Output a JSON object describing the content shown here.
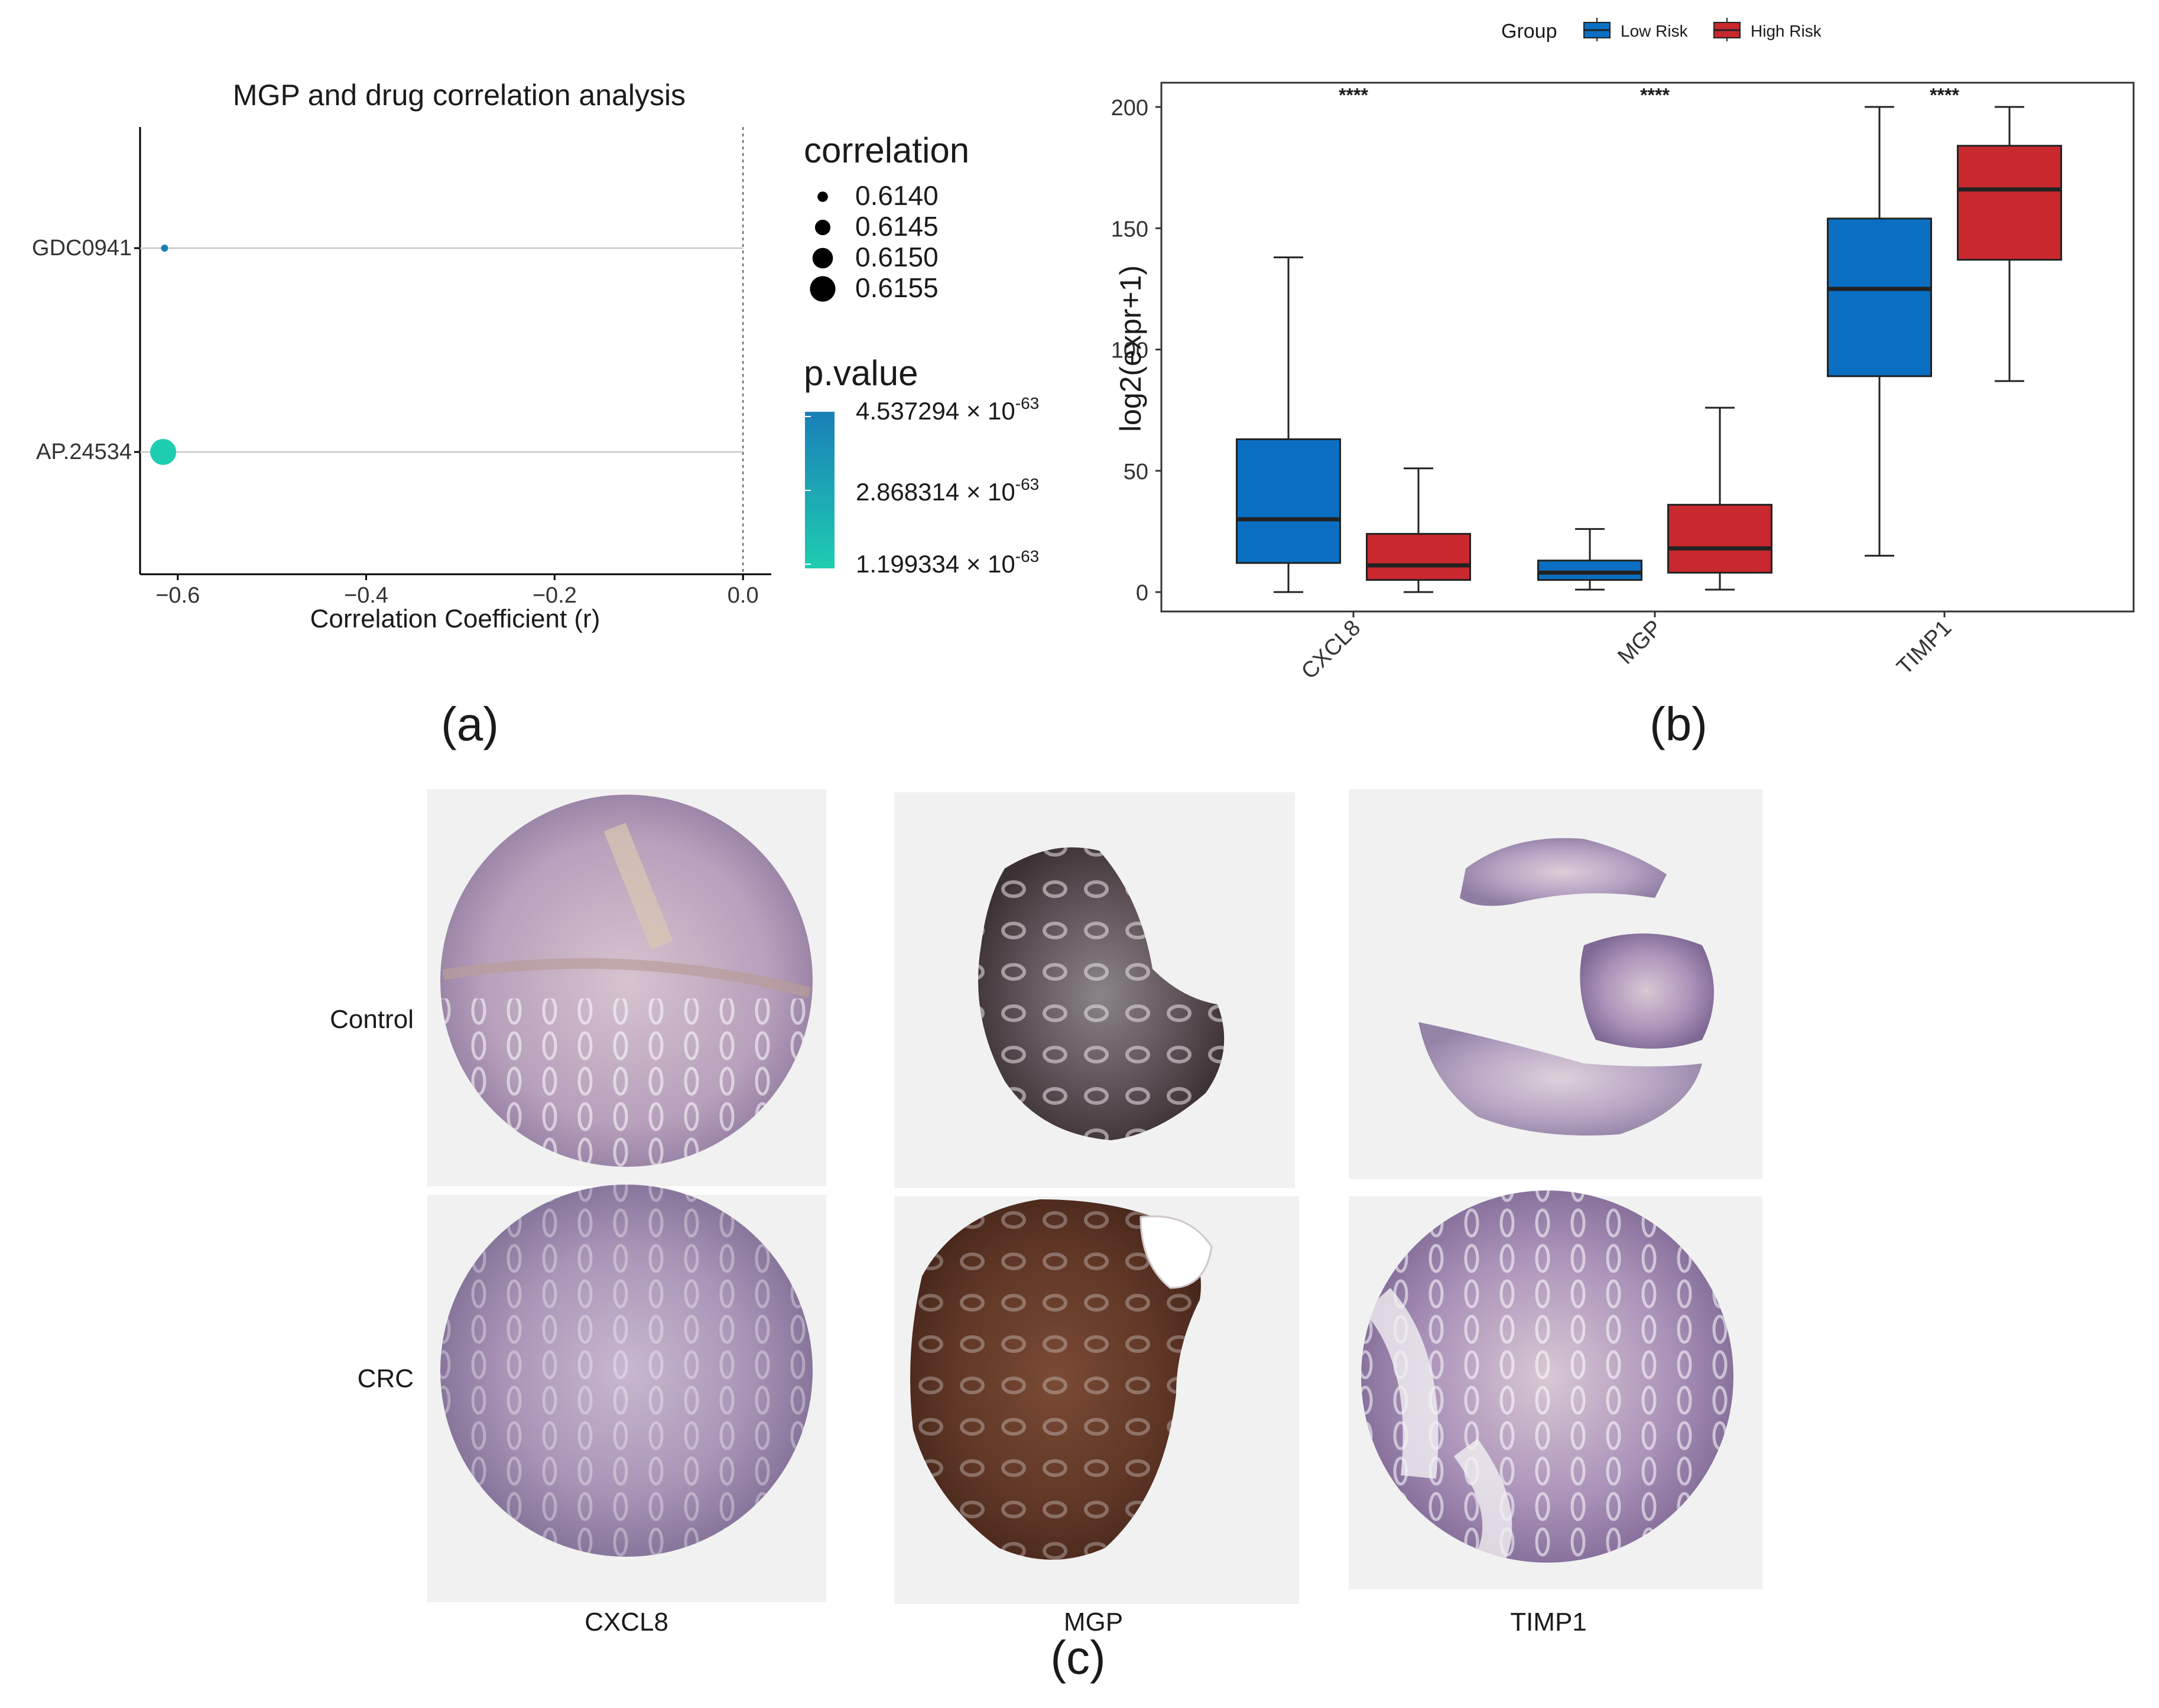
{
  "panels": {
    "a": {
      "label": "(a)"
    },
    "b": {
      "label": "(b)"
    },
    "c": {
      "label": "(c)"
    }
  },
  "chart_data": [
    {
      "id": "a",
      "type": "scatter",
      "title": "MGP and drug correlation analysis",
      "xlabel": "Correlation Coefficient (r)",
      "ylabel": "",
      "xlim": [
        -0.64,
        0.03
      ],
      "x_ticks": [
        -0.6,
        -0.4,
        -0.2,
        0.0
      ],
      "x_tick_labels": [
        "−0.6",
        "−0.4",
        "−0.2",
        "0.0"
      ],
      "reference_line_x": 0.0,
      "categories": [
        "GDC0941",
        "AP.24534"
      ],
      "points": [
        {
          "drug": "GDC0941",
          "r": -0.614,
          "correlation": 0.614,
          "p_value": 4.537294e-63,
          "color": "#1a7fb8"
        },
        {
          "drug": "AP.24534",
          "r": -0.6155,
          "correlation": 0.6155,
          "p_value": 1.199334e-63,
          "color": "#1ecdb0"
        }
      ],
      "size_legend": {
        "title": "correlation",
        "entries": [
          "0.6140",
          "0.6145",
          "0.6150",
          "0.6155"
        ]
      },
      "color_legend": {
        "title": "p.value",
        "entries": [
          {
            "mantissa": "4.537294",
            "base": "× 10",
            "exp": "-63"
          },
          {
            "mantissa": "2.868314",
            "base": "× 10",
            "exp": "-63"
          },
          {
            "mantissa": "1.199334",
            "base": "× 10",
            "exp": "-63"
          }
        ],
        "color_high": "#1a7fb8",
        "color_low": "#1ecdb0"
      }
    },
    {
      "id": "b",
      "type": "box",
      "title": "",
      "xlabel": "",
      "ylabel": "log2(expr+1)",
      "ylim": [
        -8,
        210
      ],
      "y_ticks": [
        0,
        50,
        100,
        150,
        200
      ],
      "categories": [
        "CXCL8",
        "MGP",
        "TIMP1"
      ],
      "significance": [
        "****",
        "****",
        "****"
      ],
      "legend": {
        "title": "Group",
        "entries": [
          {
            "name": "Low Risk",
            "color": "#0a6fc2"
          },
          {
            "name": "High Risk",
            "color": "#c8282e"
          }
        ]
      },
      "series": [
        {
          "name": "Low Risk",
          "color": "#0a6fc2",
          "boxes": [
            {
              "min": 0,
              "q1": 12,
              "median": 30,
              "q3": 63,
              "max": 138
            },
            {
              "min": 1,
              "q1": 5,
              "median": 8,
              "q3": 13,
              "max": 26
            },
            {
              "min": 15,
              "q1": 89,
              "median": 125,
              "q3": 154,
              "max": 200
            }
          ]
        },
        {
          "name": "High Risk",
          "color": "#c8282e",
          "boxes": [
            {
              "min": 0,
              "q1": 5,
              "median": 11,
              "q3": 24,
              "max": 51
            },
            {
              "min": 1,
              "q1": 8,
              "median": 18,
              "q3": 36,
              "max": 76
            },
            {
              "min": 87,
              "q1": 137,
              "median": 166,
              "q3": 184,
              "max": 200
            }
          ]
        }
      ]
    }
  ],
  "ihc": {
    "row_labels": [
      "Control",
      "CRC"
    ],
    "col_labels": [
      "CXCL8",
      "MGP",
      "TIMP1"
    ],
    "images": [
      {
        "row": "Control",
        "gene": "CXCL8",
        "stain": "light",
        "shape": "full"
      },
      {
        "row": "Control",
        "gene": "MGP",
        "stain": "dark",
        "shape": "partial"
      },
      {
        "row": "Control",
        "gene": "TIMP1",
        "stain": "light",
        "shape": "sparse"
      },
      {
        "row": "CRC",
        "gene": "CXCL8",
        "stain": "light",
        "shape": "full"
      },
      {
        "row": "CRC",
        "gene": "MGP",
        "stain": "very-dark",
        "shape": "full"
      },
      {
        "row": "CRC",
        "gene": "TIMP1",
        "stain": "medium",
        "shape": "full"
      }
    ]
  }
}
